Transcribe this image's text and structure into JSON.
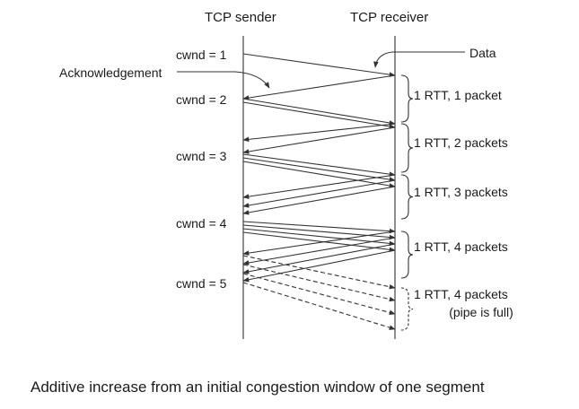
{
  "headers": {
    "sender": "TCP sender",
    "receiver": "TCP receiver"
  },
  "annotations": {
    "data": "Data",
    "ack": "Acknowledgement"
  },
  "cwnd_labels": [
    "cwnd = 1",
    "cwnd = 2",
    "cwnd = 3",
    "cwnd = 4",
    "cwnd = 5"
  ],
  "rtt_labels": [
    "1 RTT, 1 packet",
    "1 RTT, 2 packets",
    "1 RTT, 3 packets",
    "1 RTT, 4 packets",
    "1 RTT, 4 packets"
  ],
  "rtt_note": "(pipe is full)",
  "caption": "Additive increase from an initial congestion window of one segment",
  "colors": {
    "line": "#333333",
    "text": "#1a1a1a",
    "background": "#ffffff"
  }
}
